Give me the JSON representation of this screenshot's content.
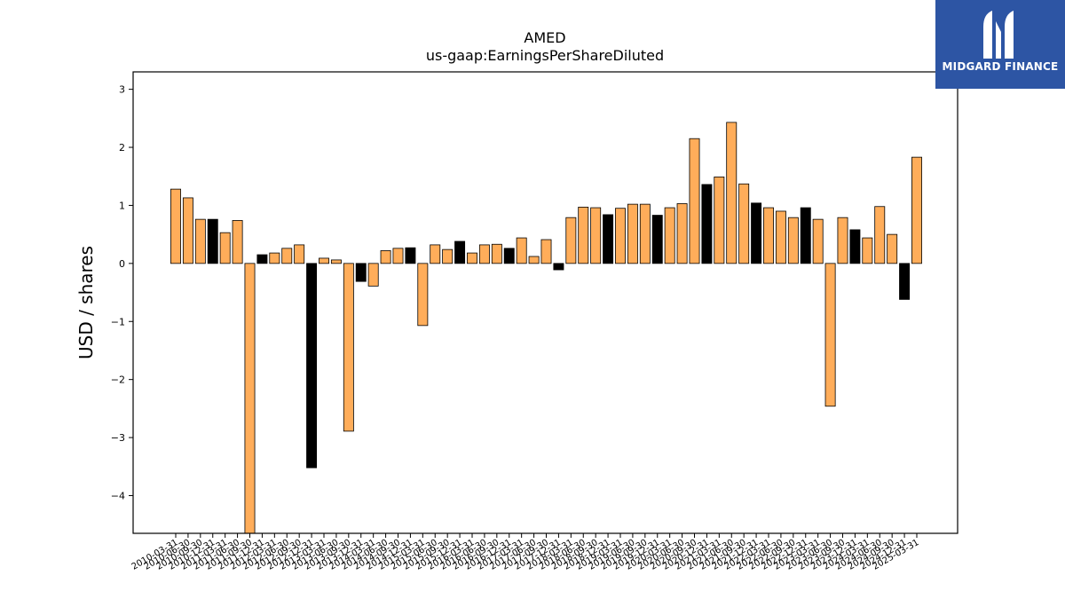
{
  "chart_data": {
    "type": "bar",
    "title": "AMED",
    "subtitle": "us-gaap:EarningsPerShareDiluted",
    "ylabel": "USD / shares",
    "xlabel": "",
    "ylim": [
      -4.65,
      3.3
    ],
    "yticks": [
      3,
      2,
      1,
      0,
      -1,
      -2,
      -3,
      -4
    ],
    "ytick_labels": [
      "3",
      "2",
      "1",
      "0",
      "−1",
      "−2",
      "−3",
      "−4"
    ],
    "grid": false,
    "legend": "none",
    "colors": {
      "normal": "#ffad5a",
      "highlight": "#000000",
      "edge": "#000000"
    },
    "bars": [
      {
        "label": "2010-03-31",
        "value": 1.28,
        "highlight": false
      },
      {
        "label": "2010-06-30",
        "value": 1.13,
        "highlight": false
      },
      {
        "label": "2010-09-30",
        "value": 0.76,
        "highlight": false
      },
      {
        "label": "2010-12-31",
        "value": 0.76,
        "highlight": true
      },
      {
        "label": "2011-03-31",
        "value": 0.53,
        "highlight": false
      },
      {
        "label": "2011-06-30",
        "value": 0.74,
        "highlight": false
      },
      {
        "label": "2011-09-30",
        "value": -4.65,
        "highlight": false
      },
      {
        "label": "2011-12-31",
        "value": 0.15,
        "highlight": true
      },
      {
        "label": "2012-03-31",
        "value": 0.18,
        "highlight": false
      },
      {
        "label": "2012-06-30",
        "value": 0.26,
        "highlight": false
      },
      {
        "label": "2012-09-30",
        "value": 0.32,
        "highlight": false
      },
      {
        "label": "2012-12-31",
        "value": -3.52,
        "highlight": true
      },
      {
        "label": "2013-03-31",
        "value": 0.09,
        "highlight": false
      },
      {
        "label": "2013-06-30",
        "value": 0.06,
        "highlight": false
      },
      {
        "label": "2013-09-30",
        "value": -2.89,
        "highlight": false
      },
      {
        "label": "2013-12-31",
        "value": -0.31,
        "highlight": true
      },
      {
        "label": "2014-03-31",
        "value": -0.39,
        "highlight": false
      },
      {
        "label": "2014-06-30",
        "value": 0.22,
        "highlight": false
      },
      {
        "label": "2014-09-30",
        "value": 0.26,
        "highlight": false
      },
      {
        "label": "2014-12-31",
        "value": 0.27,
        "highlight": true
      },
      {
        "label": "2015-03-31",
        "value": -1.07,
        "highlight": false
      },
      {
        "label": "2015-06-30",
        "value": 0.32,
        "highlight": false
      },
      {
        "label": "2015-09-30",
        "value": 0.24,
        "highlight": false
      },
      {
        "label": "2015-12-31",
        "value": 0.38,
        "highlight": true
      },
      {
        "label": "2016-03-31",
        "value": 0.18,
        "highlight": false
      },
      {
        "label": "2016-06-30",
        "value": 0.32,
        "highlight": false
      },
      {
        "label": "2016-09-30",
        "value": 0.33,
        "highlight": false
      },
      {
        "label": "2016-12-31",
        "value": 0.26,
        "highlight": true
      },
      {
        "label": "2017-03-31",
        "value": 0.44,
        "highlight": false
      },
      {
        "label": "2017-06-30",
        "value": 0.12,
        "highlight": false
      },
      {
        "label": "2017-09-30",
        "value": 0.41,
        "highlight": false
      },
      {
        "label": "2017-12-31",
        "value": -0.11,
        "highlight": true
      },
      {
        "label": "2018-03-31",
        "value": 0.79,
        "highlight": false
      },
      {
        "label": "2018-06-30",
        "value": 0.97,
        "highlight": false
      },
      {
        "label": "2018-09-30",
        "value": 0.96,
        "highlight": false
      },
      {
        "label": "2018-12-31",
        "value": 0.84,
        "highlight": true
      },
      {
        "label": "2019-03-31",
        "value": 0.95,
        "highlight": false
      },
      {
        "label": "2019-06-30",
        "value": 1.02,
        "highlight": false
      },
      {
        "label": "2019-09-30",
        "value": 1.02,
        "highlight": false
      },
      {
        "label": "2019-12-31",
        "value": 0.83,
        "highlight": true
      },
      {
        "label": "2020-03-31",
        "value": 0.96,
        "highlight": false
      },
      {
        "label": "2020-06-30",
        "value": 1.03,
        "highlight": false
      },
      {
        "label": "2020-09-30",
        "value": 2.15,
        "highlight": false
      },
      {
        "label": "2020-12-31",
        "value": 1.36,
        "highlight": true
      },
      {
        "label": "2021-03-31",
        "value": 1.49,
        "highlight": false
      },
      {
        "label": "2021-06-30",
        "value": 2.43,
        "highlight": false
      },
      {
        "label": "2021-09-30",
        "value": 1.37,
        "highlight": false
      },
      {
        "label": "2021-12-31",
        "value": 1.04,
        "highlight": true
      },
      {
        "label": "2022-03-31",
        "value": 0.96,
        "highlight": false
      },
      {
        "label": "2022-06-30",
        "value": 0.9,
        "highlight": false
      },
      {
        "label": "2022-09-30",
        "value": 0.79,
        "highlight": false
      },
      {
        "label": "2022-12-31",
        "value": 0.96,
        "highlight": true
      },
      {
        "label": "2023-03-31",
        "value": 0.76,
        "highlight": false
      },
      {
        "label": "2023-06-30",
        "value": -2.46,
        "highlight": false
      },
      {
        "label": "2023-09-30",
        "value": 0.79,
        "highlight": false
      },
      {
        "label": "2023-12-31",
        "value": 0.58,
        "highlight": true
      },
      {
        "label": "2024-03-31",
        "value": 0.44,
        "highlight": false
      },
      {
        "label": "2024-06-30",
        "value": 0.98,
        "highlight": false
      },
      {
        "label": "2024-09-30",
        "value": 0.5,
        "highlight": false
      },
      {
        "label": "2024-12-31",
        "value": -0.62,
        "highlight": true
      },
      {
        "label": "2025-03-31",
        "value": 1.83,
        "highlight": false
      }
    ]
  },
  "logo": {
    "brand": "MIDGARD FINANCE",
    "icon": "midgard-logo-icon"
  }
}
